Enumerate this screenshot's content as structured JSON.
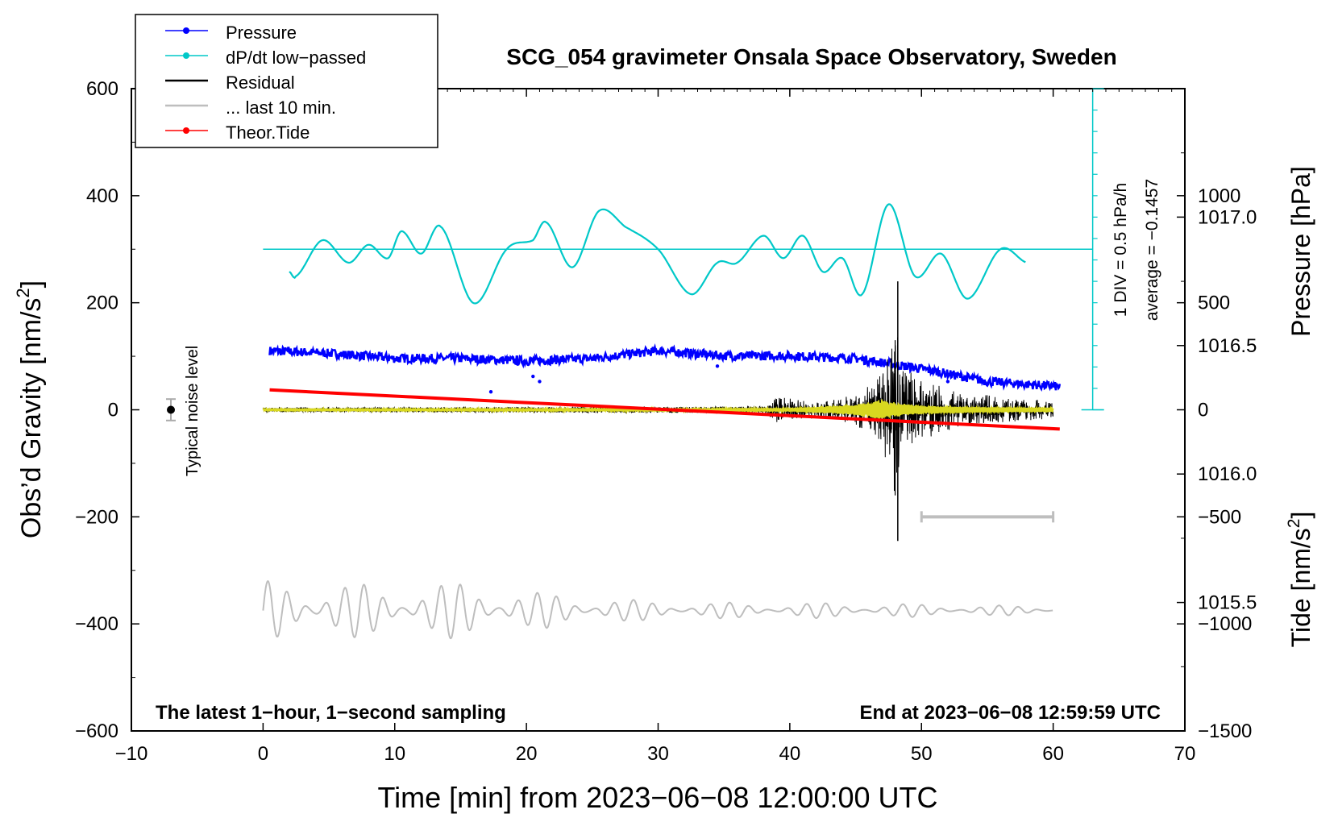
{
  "chart_data": {
    "type": "line",
    "title": "SCG_054 gravimeter Onsala Space Observatory, Sweden",
    "xlabel": "Time [min] from 2023−06−08 12:00:00 UTC",
    "ylabel_left": "Obs’d Gravity [nm/s",
    "ylabel_left_sup": "2",
    "ylabel_left_end": "]",
    "ylabel_right_top": "Pressure [hPa]",
    "ylabel_right_bottom": "Tide [nm/s",
    "ylabel_right_bottom_sup": "2",
    "ylabel_right_bottom_end": "]",
    "xlim": [
      -10,
      70
    ],
    "ylim": [
      -600,
      600
    ],
    "x_ticks": [
      -10,
      0,
      10,
      20,
      30,
      40,
      50,
      60,
      70
    ],
    "x_tick_labels": [
      "−10",
      "0",
      "10",
      "20",
      "30",
      "40",
      "50",
      "60",
      "70"
    ],
    "y_ticks": [
      -600,
      -400,
      -200,
      0,
      200,
      400,
      600
    ],
    "y_tick_labels": [
      "−600",
      "−400",
      "−200",
      "0",
      "200",
      "400",
      "600"
    ],
    "pressure_axis": {
      "ticks": [
        1015.5,
        1016.0,
        1016.5,
        1017.0
      ],
      "tick_labels": [
        "1015.5",
        "1016.0",
        "1016.5",
        "1017.0"
      ],
      "range": [
        1015.0,
        1017.5
      ]
    },
    "tide_axis": {
      "ticks": [
        -1500,
        -1000,
        -500,
        0,
        500,
        1000
      ],
      "tick_labels": [
        "−1500",
        "−1000",
        "−500",
        "0",
        "500",
        "1000"
      ],
      "range": [
        -1500,
        1500
      ]
    },
    "legend": [
      {
        "label": "Pressure",
        "color": "#0000ff",
        "marker": true
      },
      {
        "label": "dP/dt low−passed",
        "color": "#00c8c8",
        "marker": true
      },
      {
        "label": "Residual",
        "color": "#000000",
        "marker": false
      },
      {
        "label": "... last 10 min.",
        "color": "#bebebe",
        "marker": false
      },
      {
        "label": "Theor.Tide",
        "color": "#ff0000",
        "marker": true
      }
    ],
    "series": [
      {
        "name": "Pressure",
        "color": "#0000ff",
        "unit": "hPa",
        "x_range": [
          0.5,
          60.5
        ],
        "x": [
          0.5,
          5,
          10,
          15,
          20,
          25,
          30,
          35,
          40,
          45,
          50,
          55,
          60.5
        ],
        "values": [
          1016.48,
          1016.47,
          1016.45,
          1016.45,
          1016.44,
          1016.45,
          1016.48,
          1016.46,
          1016.46,
          1016.45,
          1016.41,
          1016.36,
          1016.34
        ]
      },
      {
        "name": "dP/dt low−passed",
        "color": "#00c8c8",
        "unit": "hPa/h",
        "x_range": [
          2,
          58
        ],
        "x": [
          2,
          2.5,
          4.5,
          6.5,
          8,
          9.5,
          10.5,
          12,
          13.5,
          16,
          18.5,
          20.5,
          21.5,
          23.5,
          25.5,
          27.5,
          30,
          32.5,
          34.5,
          36,
          38,
          39.5,
          41,
          42.5,
          44,
          45.5,
          47.5,
          49.5,
          51.5,
          53.5,
          56,
          58
        ],
        "values": [
          -0.1,
          -0.12,
          0.04,
          -0.06,
          0.02,
          -0.04,
          0.08,
          -0.02,
          0.1,
          -0.24,
          0.0,
          0.04,
          0.12,
          -0.08,
          0.17,
          0.1,
          0.0,
          -0.2,
          -0.06,
          -0.06,
          0.06,
          -0.04,
          0.06,
          -0.1,
          -0.04,
          -0.2,
          0.2,
          -0.12,
          -0.02,
          -0.22,
          0.0,
          -0.06
        ],
        "baseline": 0.0,
        "scale_label": "1 DIV = 0.5 hPa/h",
        "average_label": "average = −0.1457"
      },
      {
        "name": "Residual",
        "color": "#000000",
        "unit": "nm/s2",
        "x_range": [
          0,
          60
        ],
        "envelope_x": [
          0,
          38,
          39,
          42,
          45,
          46.5,
          47.5,
          48,
          48.4,
          49,
          50,
          52,
          56,
          60
        ],
        "envelope_amp": [
          4,
          6,
          28,
          15,
          28,
          55,
          100,
          180,
          90,
          75,
          60,
          40,
          25,
          18
        ]
      },
      {
        "name": "Residual (filtered)",
        "color": "#d8d820",
        "unit": "nm/s2",
        "x_range": [
          0,
          60
        ],
        "envelope_x": [
          0,
          40,
          45,
          47,
          48,
          50,
          55,
          60
        ],
        "envelope_amp": [
          2,
          3,
          10,
          20,
          14,
          8,
          5,
          4
        ]
      },
      {
        "name": "... last 10 min.",
        "color": "#bebebe",
        "unit": "nm/s2",
        "x_range": [
          0,
          60
        ],
        "center": -375,
        "envelope_x": [
          0,
          5,
          10,
          16,
          20,
          24,
          28,
          35,
          45,
          50,
          60
        ],
        "envelope_amp": [
          55,
          55,
          45,
          55,
          35,
          30,
          20,
          15,
          14,
          12,
          8
        ],
        "scale_bar_x": [
          50,
          60
        ],
        "scale_bar_y": -200
      },
      {
        "name": "Theor.Tide",
        "color": "#ff0000",
        "unit": "nm/s2",
        "x": [
          0.5,
          60.5
        ],
        "values": [
          93,
          -90
        ]
      }
    ],
    "noise_level": {
      "label": "Typical noise level",
      "x": -7,
      "y": 0,
      "error": 20
    },
    "annotations": {
      "bottom_left": "The latest 1−hour, 1−second sampling",
      "bottom_right": "End at 2023−06−08 12:59:59 UTC"
    },
    "grid": false,
    "legend_position": "top-left"
  }
}
